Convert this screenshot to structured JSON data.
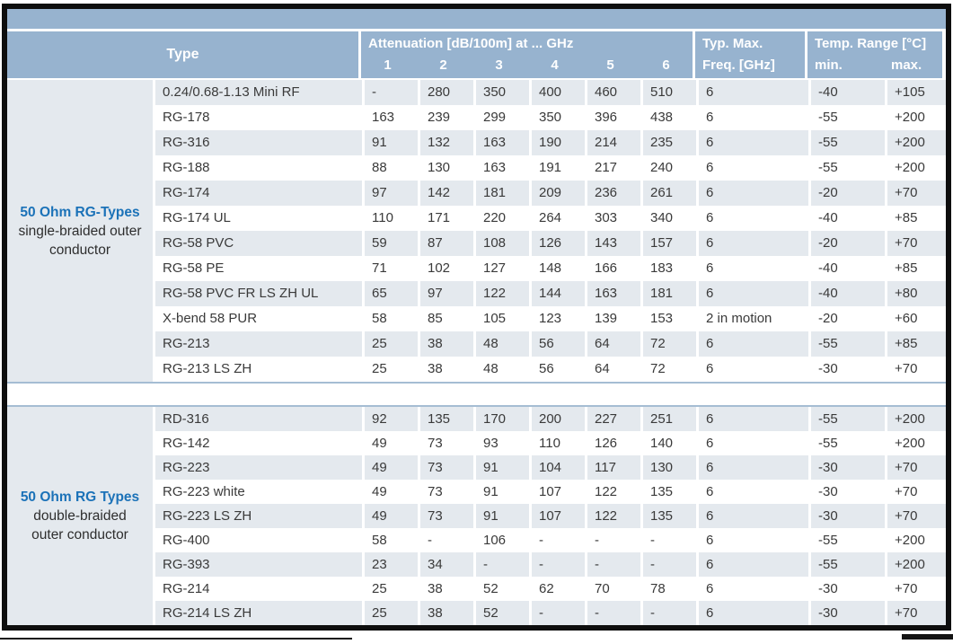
{
  "colors": {
    "header_blue": "#97b3cf",
    "row_stripe": "#e4e9ee",
    "group_title_blue": "#1b72b8",
    "frame_black": "#0e0e0e",
    "text": "#3a3a3a"
  },
  "header": {
    "type_label": "Type",
    "attenuation_label": "Attenuation [dB/100m] at ... GHz",
    "freq_cols": [
      "1",
      "2",
      "3",
      "4",
      "5",
      "6"
    ],
    "typ_max_line1": "Typ. Max.",
    "typ_max_line2": "Freq. [GHz]",
    "temp_range_label": "Temp. Range [°C]",
    "temp_min_label": "min.",
    "temp_max_label": "max."
  },
  "groups": [
    {
      "title": "50 Ohm RG-Types",
      "subtitle_lines": [
        "single-braided outer",
        "conductor"
      ],
      "rows": [
        {
          "name": "0.24/0.68-1.13 Mini RF",
          "att": [
            "-",
            "280",
            "350",
            "400",
            "460",
            "510"
          ],
          "freq": "6",
          "min": "-40",
          "max": "+105"
        },
        {
          "name": "RG-178",
          "att": [
            "163",
            "239",
            "299",
            "350",
            "396",
            "438"
          ],
          "freq": "6",
          "min": "-55",
          "max": "+200"
        },
        {
          "name": "RG-316",
          "att": [
            "91",
            "132",
            "163",
            "190",
            "214",
            "235"
          ],
          "freq": "6",
          "min": "-55",
          "max": "+200"
        },
        {
          "name": "RG-188",
          "att": [
            "88",
            "130",
            "163",
            "191",
            "217",
            "240"
          ],
          "freq": "6",
          "min": "-55",
          "max": "+200"
        },
        {
          "name": "RG-174",
          "att": [
            "97",
            "142",
            "181",
            "209",
            "236",
            "261"
          ],
          "freq": "6",
          "min": "-20",
          "max": "+70"
        },
        {
          "name": "RG-174 UL",
          "att": [
            "110",
            "171",
            "220",
            "264",
            "303",
            "340"
          ],
          "freq": "6",
          "min": "-40",
          "max": "+85"
        },
        {
          "name": "RG-58 PVC",
          "att": [
            "59",
            "87",
            "108",
            "126",
            "143",
            "157"
          ],
          "freq": "6",
          "min": "-20",
          "max": "+70"
        },
        {
          "name": "RG-58 PE",
          "att": [
            "71",
            "102",
            "127",
            "148",
            "166",
            "183"
          ],
          "freq": "6",
          "min": "-40",
          "max": "+85"
        },
        {
          "name": "RG-58 PVC FR LS ZH UL",
          "att": [
            "65",
            "97",
            "122",
            "144",
            "163",
            "181"
          ],
          "freq": "6",
          "min": "-40",
          "max": "+80"
        },
        {
          "name": "X-bend 58 PUR",
          "att": [
            "58",
            "85",
            "105",
            "123",
            "139",
            "153"
          ],
          "freq": "2 in motion",
          "min": "-20",
          "max": "+60"
        },
        {
          "name": "RG-213",
          "att": [
            "25",
            "38",
            "48",
            "56",
            "64",
            "72"
          ],
          "freq": "6",
          "min": "-55",
          "max": "+85"
        },
        {
          "name": "RG-213 LS ZH",
          "att": [
            "25",
            "38",
            "48",
            "56",
            "64",
            "72"
          ],
          "freq": "6",
          "min": "-30",
          "max": "+70"
        }
      ]
    },
    {
      "title": "50 Ohm RG Types",
      "subtitle_lines": [
        "double-braided",
        "outer conductor"
      ],
      "rows": [
        {
          "name": "RD-316",
          "att": [
            "92",
            "135",
            "170",
            "200",
            "227",
            "251"
          ],
          "freq": "6",
          "min": "-55",
          "max": "+200"
        },
        {
          "name": "RG-142",
          "att": [
            "49",
            "73",
            "93",
            "110",
            "126",
            "140"
          ],
          "freq": "6",
          "min": "-55",
          "max": "+200"
        },
        {
          "name": "RG-223",
          "att": [
            "49",
            "73",
            "91",
            "104",
            "117",
            "130"
          ],
          "freq": "6",
          "min": "-30",
          "max": "+70"
        },
        {
          "name": "RG-223 white",
          "att": [
            "49",
            "73",
            "91",
            "107",
            "122",
            "135"
          ],
          "freq": "6",
          "min": "-30",
          "max": "+70"
        },
        {
          "name": "RG-223 LS ZH",
          "att": [
            "49",
            "73",
            "91",
            "107",
            "122",
            "135"
          ],
          "freq": "6",
          "min": "-30",
          "max": "+70"
        },
        {
          "name": "RG-400",
          "att": [
            "58",
            "-",
            "106",
            "-",
            "-",
            "-"
          ],
          "freq": "6",
          "min": "-55",
          "max": "+200"
        },
        {
          "name": "RG-393",
          "att": [
            "23",
            "34",
            "-",
            "-",
            "-",
            "-"
          ],
          "freq": "6",
          "min": "-55",
          "max": "+200"
        },
        {
          "name": "RG-214",
          "att": [
            "25",
            "38",
            "52",
            "62",
            "70",
            "78"
          ],
          "freq": "6",
          "min": "-30",
          "max": "+70"
        },
        {
          "name": "RG-214 LS ZH",
          "att": [
            "25",
            "38",
            "52",
            "-",
            "-",
            "-"
          ],
          "freq": "6",
          "min": "-30",
          "max": "+70"
        }
      ]
    }
  ]
}
